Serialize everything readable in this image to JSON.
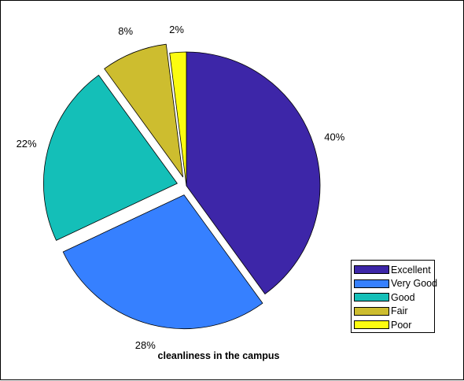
{
  "chart_data": {
    "type": "pie",
    "title": "cleanliness in the campus",
    "categories": [
      "Excellent",
      "Very Good",
      "Good",
      "Fair",
      "Poor"
    ],
    "values": [
      40,
      28,
      22,
      8,
      2
    ],
    "labels": [
      "40%",
      "28%",
      "22%",
      "8%",
      "2%"
    ],
    "exploded": [
      false,
      true,
      true,
      true,
      false
    ],
    "colors": [
      "#3d26a8",
      "#3680ff",
      "#14bfb8",
      "#cdbd2f",
      "#fcfc10"
    ],
    "legend_position": "bottom-right",
    "start": "top",
    "direction": "clockwise"
  }
}
